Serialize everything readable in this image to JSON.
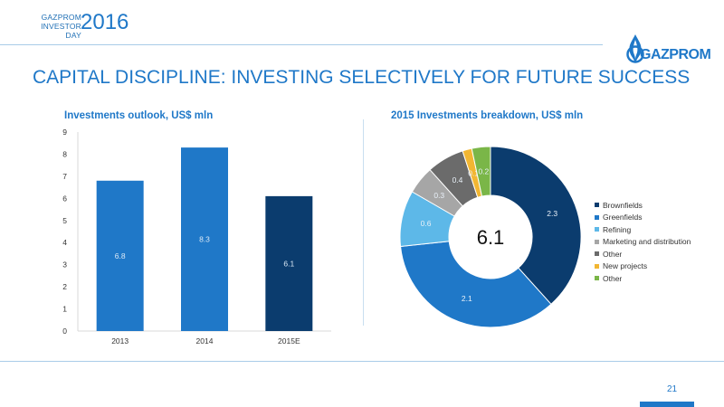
{
  "header": {
    "brand_line1": "GAZPROM",
    "brand_line2": "INVESTOR DAY",
    "year": "2016",
    "logo_text": "GAZPROM"
  },
  "title": "CAPITAL DISCIPLINE: INVESTING SELECTIVELY FOR FUTURE SUCCESS",
  "page_number": "21",
  "colors": {
    "accent": "#1f78c8",
    "dark_blue": "#0b3c6e"
  },
  "chart_data": [
    {
      "type": "bar",
      "title": "Investments outlook, US$ mln",
      "categories": [
        "2013",
        "2014",
        "2015E"
      ],
      "values": [
        6.8,
        8.3,
        6.1
      ],
      "value_labels": [
        "6.8",
        "8.3",
        "6.1"
      ],
      "bar_colors": [
        "#1f78c8",
        "#1f78c8",
        "#0b3c6e"
      ],
      "ylim": [
        0,
        9
      ],
      "yticks": [
        "0",
        "1",
        "2",
        "3",
        "4",
        "5",
        "6",
        "7",
        "8",
        "9"
      ],
      "xlabel": "",
      "ylabel": "",
      "grid": false,
      "legend": "none"
    },
    {
      "type": "pie",
      "variant": "donut",
      "title": "2015 Investments breakdown, US$ mln",
      "center_label": "6.1",
      "labels": [
        "Brownfields",
        "Greenfields",
        "Refining",
        "Marketing and distribution",
        "Other",
        "New projects",
        "Other"
      ],
      "values": [
        2.3,
        2.1,
        0.6,
        0.3,
        0.4,
        0.1,
        0.2
      ],
      "value_labels": [
        "2.3",
        "2.1",
        "0.6",
        "0.3",
        "0.4",
        "0.1",
        "0.2"
      ],
      "colors": [
        "#0b3c6e",
        "#1f78c8",
        "#5db8e8",
        "#a6a6a6",
        "#6b6b6b",
        "#f2b632",
        "#7ab648"
      ],
      "legend": "right"
    }
  ]
}
